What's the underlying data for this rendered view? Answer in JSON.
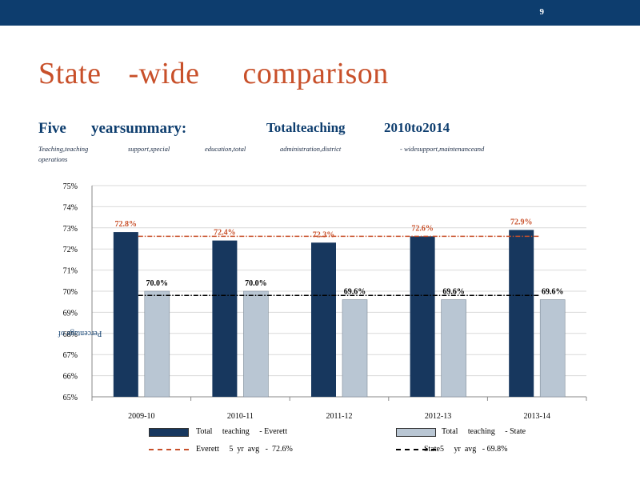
{
  "header": {
    "page_number": "9",
    "bar_color": "#0d3d6e"
  },
  "title": {
    "part1": "State",
    "part2": "-wide",
    "part3": "comparison"
  },
  "subtitle": {
    "left": "Five",
    "mid": "yearsummary:",
    "right1": "Totalteaching",
    "right2": "2010to2014"
  },
  "components": {
    "c1": "Teaching,teaching",
    "c2": "support,special",
    "c3": "education,total",
    "c4": "administration,district",
    "c5": "- widesupport,maintenanceand",
    "c6": "operations"
  },
  "chart_data": {
    "type": "bar",
    "categories": [
      "2009-10",
      "2010-11",
      "2011-12",
      "2012-13",
      "2013-14"
    ],
    "series": [
      {
        "name": "Total teaching - Everett",
        "values": [
          72.8,
          72.4,
          72.3,
          72.6,
          72.9
        ],
        "labels": [
          "72.8%",
          "72.4%",
          "72.3%",
          "72.6%",
          "72.9%"
        ],
        "color": "#17375e",
        "label_color": "#c8502a"
      },
      {
        "name": "Total teaching - State",
        "values": [
          70.0,
          70.0,
          69.6,
          69.6,
          69.6
        ],
        "labels": [
          "70.0%",
          "70.0%",
          "69.6%",
          "69.6%",
          "69.6%"
        ],
        "color": "#b9c6d3",
        "label_color": "#000000"
      }
    ],
    "reference_lines": [
      {
        "name": "Everett 5 yr avg - 72.6%",
        "value": 72.6,
        "color": "#c8502a",
        "style": "dash-dot"
      },
      {
        "name": "State5 yr avg - 69.8%",
        "value": 69.8,
        "color": "#000000",
        "style": "dash-dot"
      }
    ],
    "ylim": [
      65,
      75
    ],
    "yticks": [
      "65%",
      "66%",
      "67%",
      "68%",
      "69%",
      "70%",
      "71%",
      "72%",
      "73%",
      "74%",
      "75%"
    ],
    "ylabel": "Percentage of",
    "xlabel": "",
    "grid": true
  },
  "legend": {
    "everett_bar": "Total     teaching     - Everett",
    "state_bar": "Total     teaching     - State",
    "everett_avg": "Everett     5  yr  avg   -  72.6%",
    "state_avg": "State5     yr  avg   - 69.8%"
  }
}
